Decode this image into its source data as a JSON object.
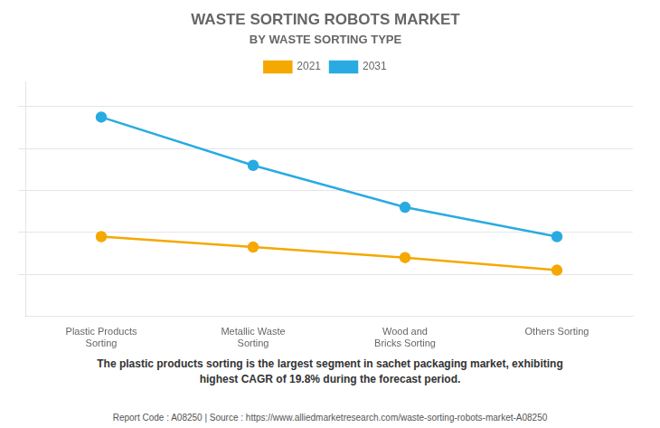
{
  "chart_data": {
    "type": "line",
    "title": "WASTE SORTING ROBOTS MARKET",
    "subtitle": "BY WASTE SORTING TYPE",
    "categories": [
      "Plastic Products\nSorting",
      "Metallic Waste\nSorting",
      "Wood and\nBricks Sorting",
      "Others Sorting"
    ],
    "series": [
      {
        "name": "2021",
        "color": "#F5A800",
        "values": [
          0.38,
          0.33,
          0.28,
          0.22
        ]
      },
      {
        "name": "2031",
        "color": "#29ABE2",
        "values": [
          0.95,
          0.72,
          0.52,
          0.38
        ]
      }
    ],
    "ylim": [
      0.0,
      1.12
    ],
    "yticks": [
      0.2,
      0.4,
      0.6,
      0.8,
      1.0
    ],
    "grid": true,
    "legend": "top",
    "marker": "circle",
    "tick_labels": "x",
    "annotations": [
      "The plastic products sorting is the largest segment in sachet packaging market, exhibiting\nhighest CAGR of 19.8% during the forecast period.",
      "Report Code : A08250  |  Source : https://www.alliedmarketresearch.com/waste-sorting-robots-market-A08250"
    ]
  }
}
